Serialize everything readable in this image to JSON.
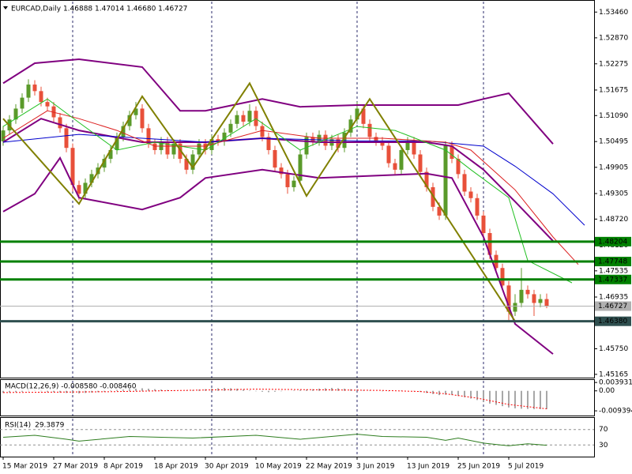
{
  "chart_data": [
    {
      "type": "candlestick",
      "title": "EURCAD,Daily  1.46888 1.47014 1.46680 1.46727",
      "up_color": "#5a9a2a",
      "down_color": "#e8503a",
      "candles": [
        [
          1.505,
          1.5085,
          1.504,
          1.5075
        ],
        [
          1.5075,
          1.511,
          1.5065,
          1.51
        ],
        [
          1.51,
          1.5135,
          1.509,
          1.5125
        ],
        [
          1.5125,
          1.516,
          1.5115,
          1.515
        ],
        [
          1.515,
          1.5192,
          1.514,
          1.518
        ],
        [
          1.518,
          1.519,
          1.5155,
          1.5165
        ],
        [
          1.5165,
          1.5175,
          1.513,
          1.514
        ],
        [
          1.514,
          1.515,
          1.512,
          1.513
        ],
        [
          1.513,
          1.514,
          1.5095,
          1.5105
        ],
        [
          1.5105,
          1.5115,
          1.507,
          1.508
        ],
        [
          1.508,
          1.509,
          1.5025,
          1.5035
        ],
        [
          1.5035,
          1.5045,
          1.4935,
          1.495
        ],
        [
          1.495,
          1.496,
          1.4915,
          1.493
        ],
        [
          1.493,
          1.4965,
          1.492,
          1.4955
        ],
        [
          1.4955,
          1.4985,
          1.4945,
          1.4975
        ],
        [
          1.4975,
          1.5,
          1.4965,
          1.499
        ],
        [
          1.499,
          1.502,
          1.498,
          1.501
        ],
        [
          1.501,
          1.504,
          1.5,
          1.503
        ],
        [
          1.503,
          1.507,
          1.502,
          1.506
        ],
        [
          1.506,
          1.5095,
          1.505,
          1.5085
        ],
        [
          1.5085,
          1.512,
          1.5075,
          1.511
        ],
        [
          1.511,
          1.514,
          1.51,
          1.5125
        ],
        [
          1.5125,
          1.5135,
          1.507,
          1.508
        ],
        [
          1.508,
          1.509,
          1.5035,
          1.5045
        ],
        [
          1.5045,
          1.5055,
          1.502,
          1.503
        ],
        [
          1.503,
          1.506,
          1.502,
          1.505
        ],
        [
          1.505,
          1.506,
          1.501,
          1.502
        ],
        [
          1.502,
          1.5055,
          1.501,
          1.5045
        ],
        [
          1.5045,
          1.5055,
          1.5,
          1.501
        ],
        [
          1.501,
          1.502,
          1.4975,
          1.4985
        ],
        [
          1.4985,
          1.503,
          1.4975,
          1.502
        ],
        [
          1.502,
          1.5055,
          1.501,
          1.5045
        ],
        [
          1.5045,
          1.5055,
          1.502,
          1.503
        ],
        [
          1.503,
          1.5065,
          1.502,
          1.5055
        ],
        [
          1.5055,
          1.5065,
          1.504,
          1.505
        ],
        [
          1.505,
          1.508,
          1.504,
          1.507
        ],
        [
          1.507,
          1.51,
          1.506,
          1.509
        ],
        [
          1.509,
          1.512,
          1.508,
          1.511
        ],
        [
          1.511,
          1.512,
          1.5085,
          1.5095
        ],
        [
          1.5095,
          1.5135,
          1.5085,
          1.512
        ],
        [
          1.512,
          1.513,
          1.5075,
          1.5085
        ],
        [
          1.5085,
          1.5095,
          1.505,
          1.506
        ],
        [
          1.506,
          1.507,
          1.502,
          1.503
        ],
        [
          1.503,
          1.504,
          1.498,
          1.499
        ],
        [
          1.499,
          1.5,
          1.4965,
          1.4975
        ],
        [
          1.4975,
          1.4985,
          1.493,
          1.4945
        ],
        [
          1.4945,
          1.497,
          1.4935,
          1.496
        ],
        [
          1.496,
          1.503,
          1.495,
          1.502
        ],
        [
          1.502,
          1.507,
          1.501,
          1.506
        ],
        [
          1.506,
          1.507,
          1.504,
          1.505
        ],
        [
          1.505,
          1.5075,
          1.504,
          1.5065
        ],
        [
          1.5065,
          1.5075,
          1.503,
          1.504
        ],
        [
          1.504,
          1.5065,
          1.503,
          1.5055
        ],
        [
          1.5055,
          1.5065,
          1.5025,
          1.5035
        ],
        [
          1.5035,
          1.508,
          1.5025,
          1.507
        ],
        [
          1.507,
          1.511,
          1.506,
          1.51
        ],
        [
          1.51,
          1.514,
          1.509,
          1.5125
        ],
        [
          1.5125,
          1.5135,
          1.508,
          1.509
        ],
        [
          1.509,
          1.51,
          1.505,
          1.506
        ],
        [
          1.506,
          1.507,
          1.504,
          1.505
        ],
        [
          1.505,
          1.506,
          1.503,
          1.504
        ],
        [
          1.504,
          1.505,
          1.499,
          1.5
        ],
        [
          1.5,
          1.501,
          1.4975,
          1.4985
        ],
        [
          1.4985,
          1.504,
          1.4975,
          1.503
        ],
        [
          1.503,
          1.506,
          1.502,
          1.505
        ],
        [
          1.505,
          1.506,
          1.501,
          1.502
        ],
        [
          1.502,
          1.503,
          1.497,
          1.498
        ],
        [
          1.498,
          1.499,
          1.4935,
          1.4945
        ],
        [
          1.4945,
          1.4955,
          1.489,
          1.49
        ],
        [
          1.49,
          1.491,
          1.487,
          1.488
        ],
        [
          1.488,
          1.505,
          1.487,
          1.504
        ],
        [
          1.504,
          1.505,
          1.5,
          1.501
        ],
        [
          1.501,
          1.502,
          1.4965,
          1.4975
        ],
        [
          1.4975,
          1.4985,
          1.4925,
          1.4935
        ],
        [
          1.4935,
          1.4945,
          1.491,
          1.492
        ],
        [
          1.492,
          1.493,
          1.487,
          1.488
        ],
        [
          1.488,
          1.489,
          1.483,
          1.484
        ],
        [
          1.484,
          1.485,
          1.478,
          1.479
        ],
        [
          1.479,
          1.48,
          1.475,
          1.476
        ],
        [
          1.476,
          1.477,
          1.471,
          1.472
        ],
        [
          1.472,
          1.473,
          1.4638,
          1.466
        ],
        [
          1.466,
          1.47,
          1.465,
          1.468
        ],
        [
          1.468,
          1.476,
          1.467,
          1.471
        ],
        [
          1.471,
          1.472,
          1.469,
          1.47
        ],
        [
          1.47,
          1.471,
          1.465,
          1.468
        ],
        [
          1.468,
          1.47,
          1.467,
          1.46888
        ],
        [
          1.46888,
          1.47014,
          1.4668,
          1.46727
        ]
      ],
      "lines": [
        {
          "color": "#800080",
          "width": 2,
          "x": [
            0,
            5,
            12,
            22,
            28,
            32,
            41,
            47,
            56,
            67,
            72,
            76,
            80,
            87
          ],
          "values": [
            1.5183,
            1.5229,
            1.5238,
            1.522,
            1.512,
            1.512,
            1.5147,
            1.5129,
            1.5133,
            1.5133,
            1.5133,
            1.5147,
            1.516,
            1.5044
          ]
        },
        {
          "color": "#800080",
          "width": 2,
          "x": [
            0,
            6,
            12,
            22,
            32,
            41,
            50,
            60,
            67,
            71,
            76,
            81,
            87
          ],
          "values": [
            1.5048,
            1.5102,
            1.5075,
            1.5048,
            1.5048,
            1.5057,
            1.5048,
            1.5048,
            1.5048,
            1.5039,
            1.4985,
            1.4912,
            1.4822
          ]
        },
        {
          "color": "#800080",
          "width": 2,
          "x": [
            0,
            5,
            9,
            12,
            22,
            28,
            32,
            41,
            50,
            60,
            67,
            71,
            76,
            81,
            87
          ],
          "values": [
            1.4889,
            1.493,
            1.5012,
            1.4921,
            1.4894,
            1.4921,
            1.4966,
            1.4985,
            1.4966,
            1.4972,
            1.4976,
            1.4966,
            1.4831,
            1.4632,
            1.4563
          ]
        },
        {
          "color": "#0000cd",
          "width": 1,
          "x": [
            0,
            12,
            22,
            32,
            41,
            56,
            67,
            76,
            81,
            87,
            92
          ],
          "values": [
            1.5048,
            1.5066,
            1.5057,
            1.5048,
            1.5057,
            1.5051,
            1.5051,
            1.5039,
            1.4993,
            1.493,
            1.4858
          ]
        },
        {
          "color": "#dc2020",
          "width": 1,
          "x": [
            0,
            7,
            12,
            18,
            24,
            32,
            41,
            50,
            60,
            70,
            74,
            81,
            87,
            91
          ],
          "values": [
            1.5057,
            1.512,
            1.5102,
            1.5075,
            1.5039,
            1.5039,
            1.5075,
            1.5057,
            1.5057,
            1.5048,
            1.503,
            1.4939,
            1.4831,
            1.4768
          ]
        },
        {
          "color": "#22c022",
          "width": 1,
          "x": [
            0,
            7,
            12,
            18,
            24,
            32,
            40,
            47,
            56,
            62,
            70,
            74,
            80,
            83,
            90
          ],
          "values": [
            1.5084,
            1.5147,
            1.5093,
            1.503,
            1.5048,
            1.503,
            1.5102,
            1.503,
            1.5084,
            1.5075,
            1.503,
            1.4985,
            1.4921,
            1.4777,
            1.4726
          ]
        },
        {
          "color": "#808000",
          "width": 2,
          "x": [
            0,
            12,
            22,
            30,
            39,
            48,
            58,
            81
          ],
          "values": [
            1.5102,
            1.4907,
            1.5153,
            1.499,
            1.5183,
            1.4925,
            1.5147,
            1.4638
          ]
        }
      ],
      "levels": [
        1.48204,
        1.47748,
        1.47337,
        {
          "value": 1.4638,
          "label": "1.46380"
        },
        1.46727
      ],
      "level_colors": [
        "#008000",
        "#008000",
        "#008000",
        "#2f4f4f",
        "#b0b0b0"
      ],
      "level_text_colors": [
        "#ffffff",
        "#ffffff",
        "#ffffff",
        "#ffffff",
        "#000000"
      ],
      "ylim": [
        1.4509,
        1.537
      ],
      "yticks": [
        {
          "value": 1.5346,
          "label": "1.53460"
        },
        {
          "value": 1.5287,
          "label": "1.52870"
        },
        1.52275,
        1.51675,
        {
          "value": 1.5109,
          "label": "1.51090"
        },
        1.50495,
        1.49905,
        1.49305,
        {
          "value": 1.4872,
          "label": "1.48720"
        },
        {
          "value": 1.4812,
          "label": "1.48120"
        },
        1.47535,
        1.46935,
        {
          "value": 1.4634,
          "label": "1.46340"
        },
        {
          "value": 1.4575,
          "label": "1.45750"
        },
        1.45165
      ],
      "xticks": [
        {
          "value": 0,
          "label": "15 Mar 2019"
        },
        {
          "value": 8,
          "label": "27 Mar 2019"
        },
        {
          "value": 16,
          "label": "8 Apr 2019"
        },
        {
          "value": 24,
          "label": "18 Apr 2019"
        },
        {
          "value": 32,
          "label": "30 Apr 2019"
        },
        {
          "value": 40,
          "label": "10 May 2019"
        },
        {
          "value": 48,
          "label": "22 May 2019"
        },
        {
          "value": 56,
          "label": "3 Jun 2019"
        },
        {
          "value": 64,
          "label": "13 Jun 2019"
        },
        {
          "value": 72,
          "label": "25 Jun 2019"
        },
        {
          "value": 80,
          "label": "5 Jul 2019"
        }
      ]
    },
    {
      "type": "bar",
      "title": "MACD(12,26,9) -0.008580 -0.008460",
      "color": "#505050",
      "values": [
        -0.001,
        -0.0008,
        -0.0006,
        -0.0004,
        -0.0002,
        -0.0001,
        -0.0002,
        -0.0004,
        -0.0006,
        -0.0008,
        -0.001,
        -0.0012,
        -0.0012,
        -0.001,
        -0.0008,
        -0.0006,
        -0.0004,
        0.0002,
        0.0004,
        0.0006,
        0.0008,
        0.001,
        0.0012,
        0.001,
        0.0008,
        0.0006,
        0.0004,
        0.0002,
        0,
        0.0002,
        0.0004,
        0.0006,
        0.0008,
        0.001,
        0.0012,
        0.0014,
        0.0012,
        0.001,
        0.0006,
        0.0002,
        -0.0002,
        -0.0004,
        -0.0006,
        -0.0004,
        -0.0002,
        0,
        0.0002,
        0.0004,
        0.0006,
        0.0008,
        0.001,
        0.0012,
        0.0014,
        0.0012,
        0.001,
        0.0008,
        0.0006,
        0.0004,
        0.0002,
        0,
        -0.0002,
        -0.0002,
        0,
        0.0002,
        0,
        -0.0002,
        -0.0005,
        -0.001,
        -0.0015,
        -0.002,
        -0.0018,
        -0.002,
        -0.0024,
        -0.003,
        -0.0036,
        -0.0043,
        -0.0052,
        -0.006,
        -0.0066,
        -0.0072,
        -0.0078,
        -0.0082,
        -0.0084,
        -0.0085,
        -0.0086,
        -0.0086,
        -0.00858
      ],
      "signal": {
        "color": "#ff0000",
        "x": [
          0,
          17,
          40,
          60,
          66,
          70,
          75,
          80,
          86
        ],
        "values": [
          -0.0008,
          -0.0004,
          0.0008,
          0.0002,
          -0.0003,
          -0.0014,
          -0.0034,
          -0.0064,
          -0.00846
        ]
      },
      "ylim": [
        -0.0116,
        0.0051
      ],
      "yticks": [
        0.003931,
        {
          "value": 0,
          "label": "0.00"
        },
        -0.009394
      ]
    },
    {
      "type": "line",
      "title": "RSI(14)",
      "color": "#2e7d1f",
      "x": [
        0,
        5,
        10,
        12,
        20,
        30,
        40,
        47,
        56,
        60,
        67,
        70,
        72,
        76,
        80,
        83,
        86
      ],
      "values": [
        50,
        55,
        45,
        40,
        52,
        48,
        55,
        45,
        58,
        52,
        50,
        42,
        48,
        35,
        28,
        33,
        29.3879
      ],
      "ylim": [
        0,
        100
      ],
      "yticks": [
        70,
        30
      ]
    }
  ]
}
